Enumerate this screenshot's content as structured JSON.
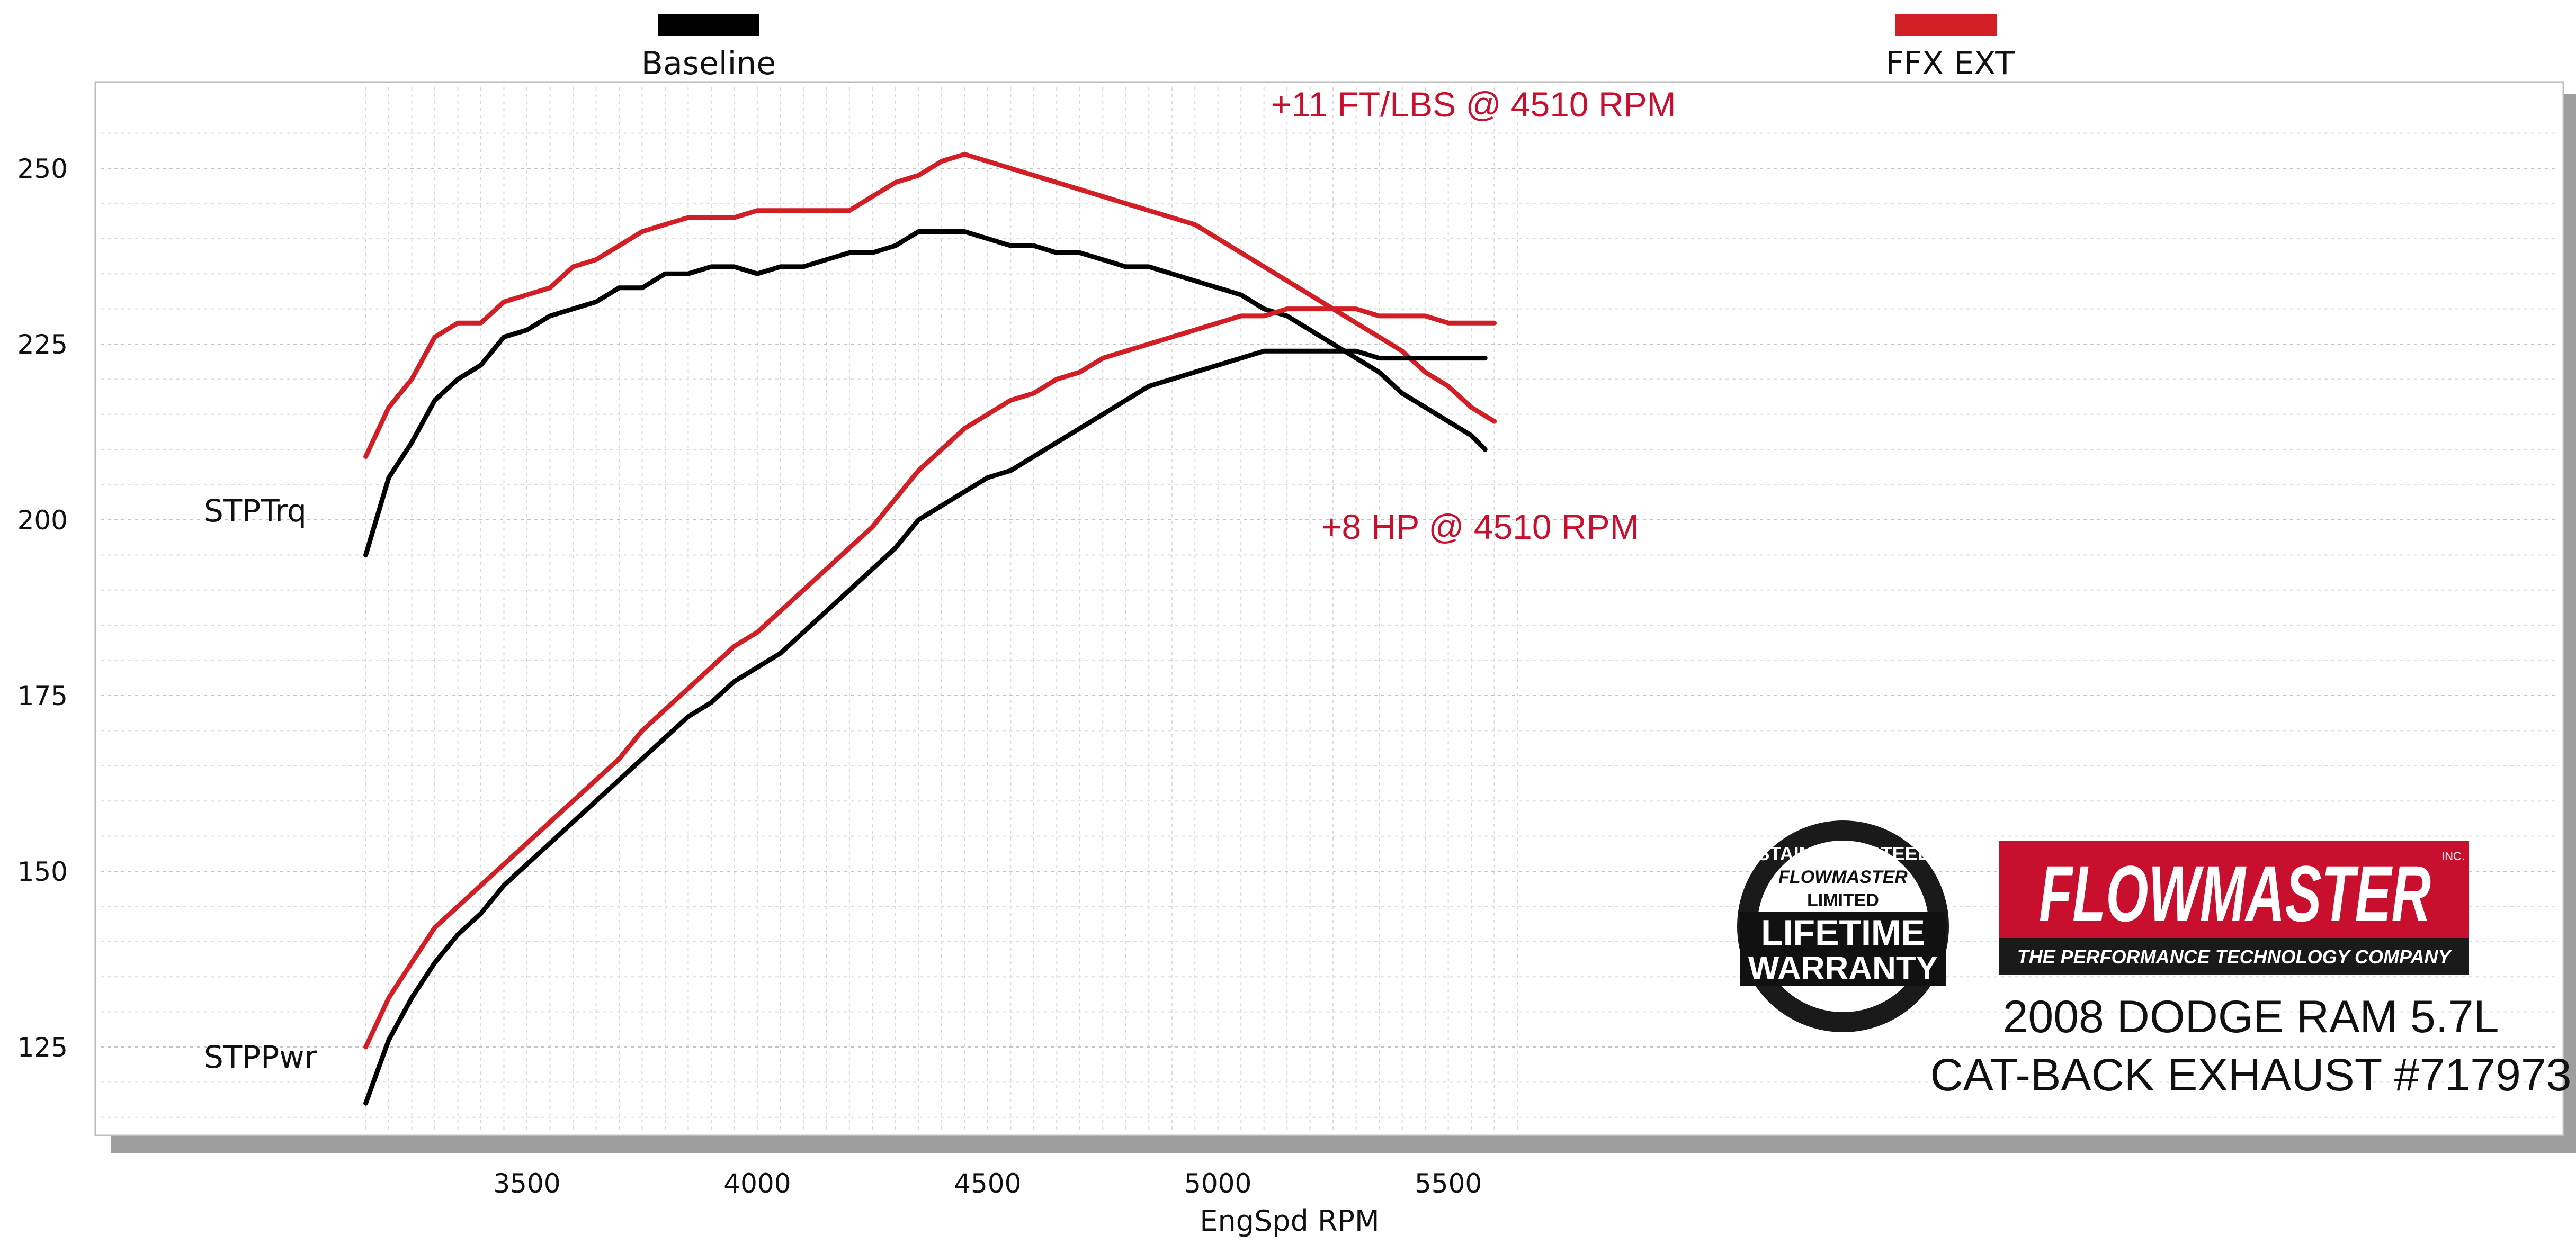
{
  "chart_data": {
    "type": "line",
    "xlabel": "EngSpd  RPM",
    "ylabel": "",
    "xlim": [
      3100,
      5700
    ],
    "ylim": [
      110,
      260
    ],
    "x_ticks": [
      3500,
      4000,
      4500,
      5000,
      5500
    ],
    "y_ticks": [
      125,
      150,
      175,
      200,
      225,
      250
    ],
    "grid": true,
    "legend": {
      "placement": "top",
      "entries": [
        {
          "name": "Baseline",
          "color": "#000000"
        },
        {
          "name": "FFX EXT",
          "color": "#d21f26"
        }
      ]
    },
    "series": [
      {
        "name": "Baseline",
        "metric": "STPTrq",
        "color": "#000000",
        "x": [
          3150,
          3200,
          3250,
          3300,
          3350,
          3400,
          3450,
          3500,
          3550,
          3600,
          3650,
          3700,
          3750,
          3800,
          3850,
          3900,
          3950,
          4000,
          4050,
          4100,
          4150,
          4200,
          4250,
          4300,
          4350,
          4400,
          4450,
          4500,
          4550,
          4600,
          4650,
          4700,
          4750,
          4800,
          4850,
          4900,
          4950,
          5000,
          5050,
          5100,
          5150,
          5200,
          5250,
          5300,
          5350,
          5400,
          5450,
          5500,
          5550,
          5580
        ],
        "values": [
          195,
          206,
          211,
          217,
          220,
          222,
          226,
          227,
          229,
          230,
          231,
          233,
          233,
          235,
          235,
          236,
          236,
          235,
          236,
          236,
          237,
          238,
          238,
          239,
          241,
          241,
          241,
          240,
          239,
          239,
          238,
          238,
          237,
          236,
          236,
          235,
          234,
          233,
          232,
          230,
          229,
          227,
          225,
          223,
          221,
          218,
          216,
          214,
          212,
          210
        ]
      },
      {
        "name": "FFX EXT",
        "metric": "STPTrq",
        "color": "#d21f26",
        "x": [
          3150,
          3200,
          3250,
          3300,
          3350,
          3400,
          3450,
          3500,
          3550,
          3600,
          3650,
          3700,
          3750,
          3800,
          3850,
          3900,
          3950,
          4000,
          4050,
          4100,
          4150,
          4200,
          4250,
          4300,
          4350,
          4400,
          4450,
          4500,
          4550,
          4600,
          4650,
          4700,
          4750,
          4800,
          4850,
          4900,
          4950,
          5000,
          5050,
          5100,
          5150,
          5200,
          5250,
          5300,
          5350,
          5400,
          5450,
          5500,
          5550,
          5600
        ],
        "values": [
          209,
          216,
          220,
          226,
          228,
          228,
          231,
          232,
          233,
          236,
          237,
          239,
          241,
          242,
          243,
          243,
          243,
          244,
          244,
          244,
          244,
          244,
          246,
          248,
          249,
          251,
          252,
          251,
          250,
          249,
          248,
          247,
          246,
          245,
          244,
          243,
          242,
          240,
          238,
          236,
          234,
          232,
          230,
          228,
          226,
          224,
          221,
          219,
          216,
          214
        ]
      },
      {
        "name": "Baseline",
        "metric": "STPPwr",
        "color": "#000000",
        "x": [
          3150,
          3200,
          3250,
          3300,
          3350,
          3400,
          3450,
          3500,
          3550,
          3600,
          3650,
          3700,
          3750,
          3800,
          3850,
          3900,
          3950,
          4000,
          4050,
          4100,
          4150,
          4200,
          4250,
          4300,
          4350,
          4400,
          4450,
          4500,
          4550,
          4600,
          4650,
          4700,
          4750,
          4800,
          4850,
          4900,
          4950,
          5000,
          5050,
          5100,
          5150,
          5200,
          5250,
          5300,
          5350,
          5400,
          5450,
          5500,
          5550,
          5580
        ],
        "values": [
          117,
          126,
          132,
          137,
          141,
          144,
          148,
          151,
          154,
          157,
          160,
          163,
          166,
          169,
          172,
          174,
          177,
          179,
          181,
          184,
          187,
          190,
          193,
          196,
          200,
          202,
          204,
          206,
          207,
          209,
          211,
          213,
          215,
          217,
          219,
          220,
          221,
          222,
          223,
          224,
          224,
          224,
          224,
          224,
          223,
          223,
          223,
          223,
          223,
          223
        ]
      },
      {
        "name": "FFX EXT",
        "metric": "STPPwr",
        "color": "#d21f26",
        "x": [
          3150,
          3200,
          3250,
          3300,
          3350,
          3400,
          3450,
          3500,
          3550,
          3600,
          3650,
          3700,
          3750,
          3800,
          3850,
          3900,
          3950,
          4000,
          4050,
          4100,
          4150,
          4200,
          4250,
          4300,
          4350,
          4400,
          4450,
          4500,
          4550,
          4600,
          4650,
          4700,
          4750,
          4800,
          4850,
          4900,
          4950,
          5000,
          5050,
          5100,
          5150,
          5200,
          5250,
          5300,
          5350,
          5400,
          5450,
          5500,
          5550,
          5600
        ],
        "values": [
          125,
          132,
          137,
          142,
          145,
          148,
          151,
          154,
          157,
          160,
          163,
          166,
          170,
          173,
          176,
          179,
          182,
          184,
          187,
          190,
          193,
          196,
          199,
          203,
          207,
          210,
          213,
          215,
          217,
          218,
          220,
          221,
          223,
          224,
          225,
          226,
          227,
          228,
          229,
          229,
          230,
          230,
          230,
          230,
          229,
          229,
          229,
          228,
          228,
          228
        ]
      }
    ],
    "series_labels": [
      "STPTrq",
      "STPPwr"
    ],
    "annotations": [
      {
        "text": "+11 FT/LBS @ 4510 RPM",
        "color": "#c8102e"
      },
      {
        "text": "+8 HP @ 4510 RPM",
        "color": "#c8102e"
      }
    ]
  },
  "branding": {
    "logo_text": "FLOWMASTER",
    "logo_tagline": "THE PERFORMANCE TECHNOLOGY COMPANY",
    "logo_inc": "INC.",
    "warranty_top": "STAINLESS STEEL",
    "warranty_brand": "FLOWMASTER",
    "warranty_limited": "LIMITED",
    "warranty_line1": "LIFETIME",
    "warranty_line2": "WARRANTY",
    "brand_color": "#c8102e"
  },
  "caption": {
    "line1": "2008 DODGE RAM 5.7L",
    "line2": "CAT-BACK EXHAUST #717973"
  }
}
